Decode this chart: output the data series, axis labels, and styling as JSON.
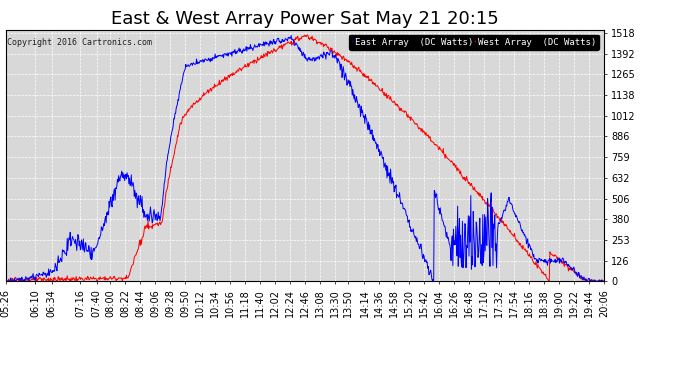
{
  "title": "East & West Array Power Sat May 21 20:15",
  "copyright": "Copyright 2016 Cartronics.com",
  "legend_east": "East Array  (DC Watts)",
  "legend_west": "West Array  (DC Watts)",
  "east_color": "#0000ff",
  "west_color": "#ff0000",
  "legend_east_bg": "#0000cc",
  "legend_west_bg": "#cc0000",
  "ymax": 1517.9,
  "ymin": 0.0,
  "ytick_interval": 126.5,
  "background_color": "#ffffff",
  "plot_bg_color": "#d8d8d8",
  "grid_color": "#ffffff",
  "x_labels": [
    "05:26",
    "06:10",
    "06:34",
    "07:16",
    "07:40",
    "08:00",
    "08:22",
    "08:44",
    "09:06",
    "09:28",
    "09:50",
    "10:12",
    "10:34",
    "10:56",
    "11:18",
    "11:40",
    "12:02",
    "12:24",
    "12:46",
    "13:08",
    "13:30",
    "13:50",
    "14:14",
    "14:36",
    "14:58",
    "15:20",
    "15:42",
    "16:04",
    "16:26",
    "16:48",
    "17:10",
    "17:32",
    "17:54",
    "18:16",
    "18:38",
    "19:00",
    "19:22",
    "19:44",
    "20:06"
  ],
  "title_fontsize": 13,
  "label_fontsize": 7
}
